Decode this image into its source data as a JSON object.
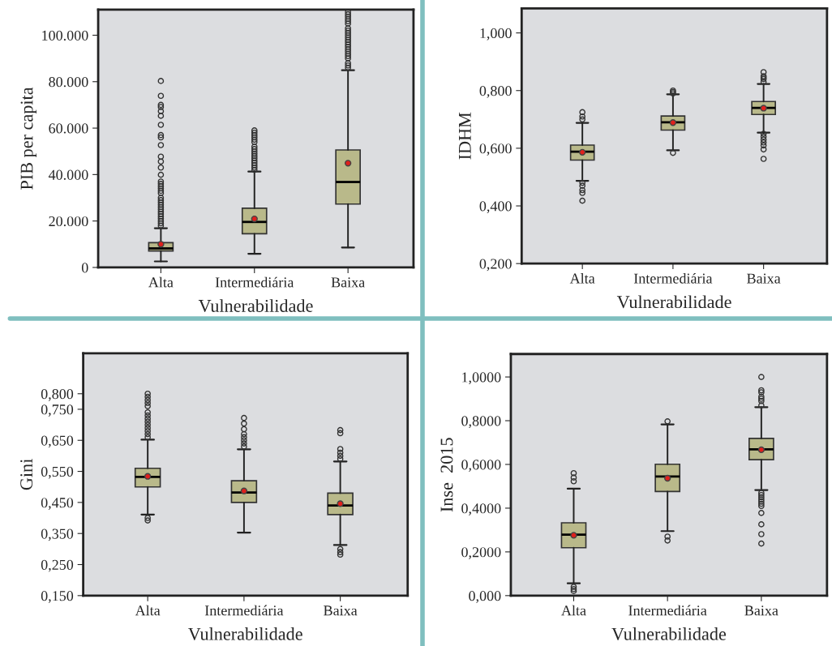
{
  "chart_data": [
    {
      "type": "box",
      "xlabel": "Vulnerabilidade",
      "ylabel": "PIB per capita",
      "categories": [
        "Alta",
        "Intermediária",
        "Baixa"
      ],
      "ylim": [
        0,
        111000
      ],
      "yticks": [
        0,
        {
          "value": 20000,
          "label": "20.000"
        },
        {
          "value": 40000,
          "label": "40.000"
        },
        {
          "value": 60000,
          "label": "60.000"
        },
        {
          "value": 80000,
          "label": "80.000"
        },
        {
          "value": 100000,
          "label": "100.000"
        }
      ],
      "boxes": [
        {
          "low": 2600,
          "q1": 7100,
          "median": 8200,
          "q3": 10700,
          "high": 16900,
          "mean": 10000,
          "outliers": [
            18000,
            19000,
            20000,
            21000,
            22000,
            23000,
            24000,
            25000,
            26000,
            27000,
            28000,
            29000,
            30000,
            32000,
            33000,
            34000,
            35000,
            36000,
            37000,
            39900,
            43000,
            45600,
            47700,
            52700,
            56000,
            57000,
            61400,
            65300,
            67300,
            69100,
            70000,
            73900,
            80300
          ]
        },
        {
          "low": 5900,
          "q1": 14500,
          "median": 19600,
          "q3": 25500,
          "high": 41300,
          "mean": 20900,
          "outliers": [
            42000,
            43000,
            44000,
            45000,
            46000,
            47000,
            48000,
            49000,
            50000,
            51000,
            52000,
            54000,
            55000,
            56000,
            57000,
            58000,
            59000
          ]
        },
        {
          "low": 8600,
          "q1": 27300,
          "median": 36800,
          "q3": 50600,
          "high": 84900,
          "mean": 44900,
          "outliers": [
            86000,
            87000,
            88000,
            90000,
            91000,
            92000,
            93000,
            94000,
            95000,
            96000,
            97000,
            98000,
            99000,
            100000,
            101000,
            102000,
            103000,
            105000,
            106000,
            107000,
            108000,
            109000,
            110000
          ]
        }
      ],
      "color": "#b9b98a",
      "grid": false
    },
    {
      "type": "box",
      "xlabel": "Vulnerabilidade",
      "ylabel": "IDHM",
      "categories": [
        "Alta",
        "Intermediária",
        "Baixa"
      ],
      "ylim": [
        0.2,
        1.085
      ],
      "yticks": [
        {
          "value": 0.2,
          "label": "0,200"
        },
        {
          "value": 0.4,
          "label": "0,400"
        },
        {
          "value": 0.6,
          "label": "0,600"
        },
        {
          "value": 0.8,
          "label": "0,800"
        },
        {
          "value": 1.0,
          "label": "1,000"
        }
      ],
      "boxes": [
        {
          "low": 0.487,
          "q1": 0.559,
          "median": 0.588,
          "q3": 0.611,
          "high": 0.688,
          "mean": 0.586,
          "outliers": [
            0.418,
            0.445,
            0.455,
            0.47,
            0.48,
            0.7,
            0.71,
            0.725
          ]
        },
        {
          "low": 0.593,
          "q1": 0.663,
          "median": 0.69,
          "q3": 0.712,
          "high": 0.787,
          "mean": 0.689,
          "outliers": [
            0.584,
            0.79,
            0.795,
            0.8
          ]
        },
        {
          "low": 0.654,
          "q1": 0.717,
          "median": 0.74,
          "q3": 0.762,
          "high": 0.823,
          "mean": 0.739,
          "outliers": [
            0.563,
            0.596,
            0.61,
            0.62,
            0.63,
            0.64,
            0.65,
            0.83,
            0.84,
            0.845,
            0.85,
            0.864
          ]
        }
      ],
      "color": "#b9b98a",
      "grid": false
    },
    {
      "type": "box",
      "xlabel": "Vulnerabilidade",
      "ylabel": "Gini",
      "categories": [
        "Alta",
        "Intermediária",
        "Baixa"
      ],
      "ylim": [
        0.15,
        0.93
      ],
      "yticks": [
        {
          "value": 0.15,
          "label": "0,150"
        },
        {
          "value": 0.25,
          "label": "0,250"
        },
        {
          "value": 0.35,
          "label": "0,350"
        },
        {
          "value": 0.45,
          "label": "0,450"
        },
        {
          "value": 0.55,
          "label": "0,550"
        },
        {
          "value": 0.65,
          "label": "0,650"
        },
        {
          "value": 0.75,
          "label": "0,750"
        },
        {
          "value": 0.8,
          "label": "0,800"
        }
      ],
      "boxes": [
        {
          "low": 0.411,
          "q1": 0.5,
          "median": 0.532,
          "q3": 0.56,
          "high": 0.652,
          "mean": 0.534,
          "outliers": [
            0.392,
            0.4,
            0.66,
            0.67,
            0.68,
            0.69,
            0.7,
            0.71,
            0.72,
            0.73,
            0.74,
            0.76,
            0.77,
            0.78,
            0.79,
            0.8
          ]
        },
        {
          "low": 0.353,
          "q1": 0.45,
          "median": 0.482,
          "q3": 0.52,
          "high": 0.621,
          "mean": 0.487,
          "outliers": [
            0.63,
            0.64,
            0.65,
            0.66,
            0.67,
            0.686,
            0.704,
            0.722
          ]
        },
        {
          "low": 0.313,
          "q1": 0.411,
          "median": 0.44,
          "q3": 0.48,
          "high": 0.582,
          "mean": 0.446,
          "outliers": [
            0.282,
            0.29,
            0.3,
            0.59,
            0.6,
            0.61,
            0.622,
            0.673,
            0.683
          ]
        }
      ],
      "color": "#b9b98a",
      "grid": false
    },
    {
      "type": "box",
      "xlabel": "Vulnerabilidade",
      "ylabel": "Inse  2015",
      "categories": [
        "Alta",
        "Intermediária",
        "Baixa"
      ],
      "ylim": [
        0,
        1.105
      ],
      "yticks": [
        {
          "value": 0,
          "label": "0,000"
        },
        {
          "value": 0.2,
          "label": "0,2000"
        },
        {
          "value": 0.4,
          "label": "0,4000"
        },
        {
          "value": 0.6,
          "label": "0,6000"
        },
        {
          "value": 0.8,
          "label": "0,8000"
        },
        {
          "value": 1.0,
          "label": "1,0000"
        }
      ],
      "boxes": [
        {
          "low": 0.056,
          "q1": 0.219,
          "median": 0.279,
          "q3": 0.333,
          "high": 0.489,
          "mean": 0.276,
          "outliers": [
            0.021,
            0.03,
            0.04,
            0.523,
            0.54,
            0.56
          ]
        },
        {
          "low": 0.295,
          "q1": 0.476,
          "median": 0.545,
          "q3": 0.601,
          "high": 0.783,
          "mean": 0.537,
          "outliers": [
            0.252,
            0.27,
            0.797
          ]
        },
        {
          "low": 0.483,
          "q1": 0.622,
          "median": 0.669,
          "q3": 0.719,
          "high": 0.862,
          "mean": 0.667,
          "outliers": [
            0.238,
            0.281,
            0.326,
            0.378,
            0.41,
            0.42,
            0.43,
            0.44,
            0.45,
            0.46,
            0.47,
            0.87,
            0.89,
            0.9,
            0.91,
            0.93,
            0.939,
            1.0
          ]
        }
      ],
      "color": "#b9b98a",
      "grid": false
    }
  ]
}
